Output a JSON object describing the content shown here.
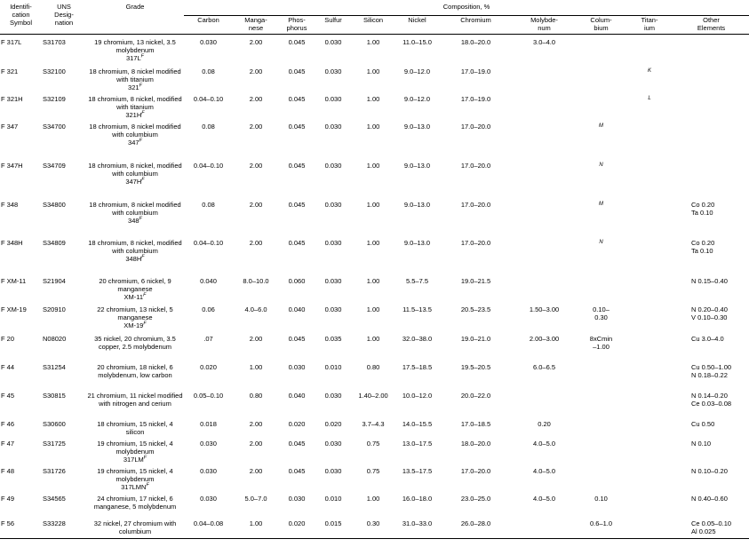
{
  "headers": {
    "id_symbol": "Identifi-\ncation\nSymbol",
    "uns": "UNS\nDesig-\nnation",
    "grade": "Grade",
    "composition": "Composition, %",
    "carbon": "Carbon",
    "manganese": "Manga-\nnese",
    "phosphorus": "Phos-\nphorus",
    "sulfur": "Sulfur",
    "silicon": "Silicon",
    "nickel": "Nickel",
    "chromium": "Chromium",
    "molybdenum": "Molybde-\nnum",
    "columbium": "Colum-\nbium",
    "titanium": "Titan-\nium",
    "other": "Other\nElements"
  },
  "rows": [
    {
      "id": "F 317L",
      "uns": "S31703",
      "grade": "19 chromium, 13 nickel, 3.5 molybdenum",
      "grade_tag": "317L",
      "grade_sup": "F",
      "c": "0.030",
      "mn": "2.00",
      "p": "0.045",
      "s": "0.030",
      "si": "1.00",
      "ni": "11.0–15.0",
      "cr": "18.0–20.0",
      "mo": "3.0–4.0",
      "cb": "",
      "ti": "",
      "other": ""
    },
    {
      "id": "F 321",
      "uns": "S32100",
      "grade": "18 chromium, 8 nickel modified with titanium",
      "grade_tag": "321",
      "grade_sup": "F",
      "c": "0.08",
      "mn": "2.00",
      "p": "0.045",
      "s": "0.030",
      "si": "1.00",
      "ni": "9.0–12.0",
      "cr": "17.0–19.0",
      "mo": "",
      "cb": "",
      "ti": "K",
      "other": ""
    },
    {
      "id": "F 321H",
      "uns": "S32109",
      "grade": "18 chromium, 8 nickel, modified with titanium",
      "grade_tag": "321H",
      "grade_sup": "F",
      "c": "0.04–0.10",
      "mn": "2.00",
      "p": "0.045",
      "s": "0.030",
      "si": "1.00",
      "ni": "9.0–12.0",
      "cr": "17.0–19.0",
      "mo": "",
      "cb": "",
      "ti": "L",
      "other": ""
    },
    {
      "id": "F 347",
      "uns": "S34700",
      "grade": "18 chromium, 8 nickel modified with columbium",
      "grade_tag": "347",
      "grade_sup": "F",
      "c": "0.08",
      "mn": "2.00",
      "p": "0.045",
      "s": "0.030",
      "si": "1.00",
      "ni": "9.0–13.0",
      "cr": "17.0–20.0",
      "mo": "",
      "cb": "M",
      "ti": "",
      "other": ""
    },
    {
      "id": "F 347H",
      "uns": "S34709",
      "grade": "18 chromium, 8 nickel, modified with columbium",
      "grade_tag": "347H",
      "grade_sup": "F",
      "c": "0.04–0.10",
      "mn": "2.00",
      "p": "0.045",
      "s": "0.030",
      "si": "1.00",
      "ni": "9.0–13.0",
      "cr": "17.0–20.0",
      "mo": "",
      "cb": "N",
      "ti": "",
      "other": ""
    },
    {
      "id": "F 348",
      "uns": "S34800",
      "grade": "18 chromium, 8 nickel modified with columbium",
      "grade_tag": "348",
      "grade_sup": "F",
      "c": "0.08",
      "mn": "2.00",
      "p": "0.045",
      "s": "0.030",
      "si": "1.00",
      "ni": "9.0–13.0",
      "cr": "17.0–20.0",
      "mo": "",
      "cb": "M",
      "ti": "",
      "other": "Co 0.20\nTa 0.10"
    },
    {
      "id": "F 348H",
      "uns": "S34809",
      "grade": "18 chromium, 8 nickel, modified with columbium",
      "grade_tag": "348H",
      "grade_sup": "F",
      "c": "0.04–0.10",
      "mn": "2.00",
      "p": "0.045",
      "s": "0.030",
      "si": "1.00",
      "ni": "9.0–13.0",
      "cr": "17.0–20.0",
      "mo": "",
      "cb": "N",
      "ti": "",
      "other": "Co 0.20\nTa 0.10"
    },
    {
      "id": "F XM-11",
      "uns": "S21904",
      "grade": "20 chromium, 6 nickel, 9 manganese",
      "grade_tag": "XM-11",
      "grade_sup": "F",
      "c": "0.040",
      "mn": "8.0–10.0",
      "p": "0.060",
      "s": "0.030",
      "si": "1.00",
      "ni": "5.5–7.5",
      "cr": "19.0–21.5",
      "mo": "",
      "cb": "",
      "ti": "",
      "other": "N 0.15–0.40"
    },
    {
      "id": "F XM-19",
      "uns": "S20910",
      "grade": "22 chromium, 13 nickel, 5 manganese",
      "grade_tag": "XM-19",
      "grade_sup": "F",
      "c": "0.06",
      "mn": "4.0–6.0",
      "p": "0.040",
      "s": "0.030",
      "si": "1.00",
      "ni": "11.5–13.5",
      "cr": "20.5–23.5",
      "mo": "1.50–3.00",
      "cb": "0.10–\n0.30",
      "ti": "",
      "other": "N 0.20–0.40\nV 0.10–0.30"
    },
    {
      "id": "F 20",
      "uns": "N08020",
      "grade": "35 nickel, 20 chromium, 3.5 copper, 2.5 molybdenum",
      "grade_tag": "",
      "grade_sup": "",
      "c": ".07",
      "mn": "2.00",
      "p": "0.045",
      "s": "0.035",
      "si": "1.00",
      "ni": "32.0–38.0",
      "cr": "19.0–21.0",
      "mo": "2.00–3.00",
      "cb": "8xCmin\n–1.00",
      "ti": "",
      "other": "Cu 3.0–4.0"
    },
    {
      "id": "F 44",
      "uns": "S31254",
      "grade": "20 chromium, 18 nickel, 6 molybdenum, low carbon",
      "grade_tag": "",
      "grade_sup": "",
      "c": "0.020",
      "mn": "1.00",
      "p": "0.030",
      "s": "0.010",
      "si": "0.80",
      "ni": "17.5–18.5",
      "cr": "19.5–20.5",
      "mo": "6.0–6.5",
      "cb": "",
      "ti": "",
      "other": "Cu 0.50–1.00\nN 0.18–0.22"
    },
    {
      "id": "F 45",
      "uns": "S30815",
      "grade": "21 chromium, 11 nickel modified with nitrogen and cerium",
      "grade_tag": "",
      "grade_sup": "",
      "c": "0.05–0.10",
      "mn": "0.80",
      "p": "0.040",
      "s": "0.030",
      "si": "1.40–2.00",
      "ni": "10.0–12.0",
      "cr": "20.0–22.0",
      "mo": "",
      "cb": "",
      "ti": "",
      "other": "N 0.14–0.20\nCe 0.03–0.08"
    },
    {
      "id": "F 46",
      "uns": "S30600",
      "grade": "18 chromium, 15 nickel, 4 silicon",
      "grade_tag": "",
      "grade_sup": "",
      "c": "0.018",
      "mn": "2.00",
      "p": "0.020",
      "s": "0.020",
      "si": "3.7–4.3",
      "ni": "14.0–15.5",
      "cr": "17.0–18.5",
      "mo": "0.20",
      "cb": "",
      "ti": "",
      "other": "Cu 0.50"
    },
    {
      "id": "F 47",
      "uns": "S31725",
      "grade": "19 chromium, 15 nickel, 4 molybdenum",
      "grade_tag": "317LM",
      "grade_sup": "F",
      "c": "0.030",
      "mn": "2.00",
      "p": "0.045",
      "s": "0.030",
      "si": "0.75",
      "ni": "13.0–17.5",
      "cr": "18.0–20.0",
      "mo": "4.0–5.0",
      "cb": "",
      "ti": "",
      "other": "N 0.10"
    },
    {
      "id": "F 48",
      "uns": "S31726",
      "grade": "19 chromium, 15 nickel, 4 molybdenum",
      "grade_tag": "317LMN",
      "grade_sup": "F",
      "c": "0.030",
      "mn": "2.00",
      "p": "0.045",
      "s": "0.030",
      "si": "0.75",
      "ni": "13.5–17.5",
      "cr": "17.0–20.0",
      "mo": "4.0–5.0",
      "cb": "",
      "ti": "",
      "other": "N 0.10–0.20"
    },
    {
      "id": "F 49",
      "uns": "S34565",
      "grade": "24 chromium, 17 nickel, 6 manganese, 5 molybdenum",
      "grade_tag": "",
      "grade_sup": "",
      "c": "0.030",
      "mn": "5.0–7.0",
      "p": "0.030",
      "s": "0.010",
      "si": "1.00",
      "ni": "16.0–18.0",
      "cr": "23.0–25.0",
      "mo": "4.0–5.0",
      "cb": "0.10",
      "ti": "",
      "other": "N 0.40–0.60"
    },
    {
      "id": "F 56",
      "uns": "S33228",
      "grade": "32 nickel, 27 chromium with columbium",
      "grade_tag": "",
      "grade_sup": "",
      "c": "0.04–0.08",
      "mn": "1.00",
      "p": "0.020",
      "s": "0.015",
      "si": "0.30",
      "ni": "31.0–33.0",
      "cr": "26.0–28.0",
      "mo": "",
      "cb": "0.6–1.0",
      "ti": "",
      "other": "Ce 0.05–0.10\nAl 0.025"
    }
  ]
}
